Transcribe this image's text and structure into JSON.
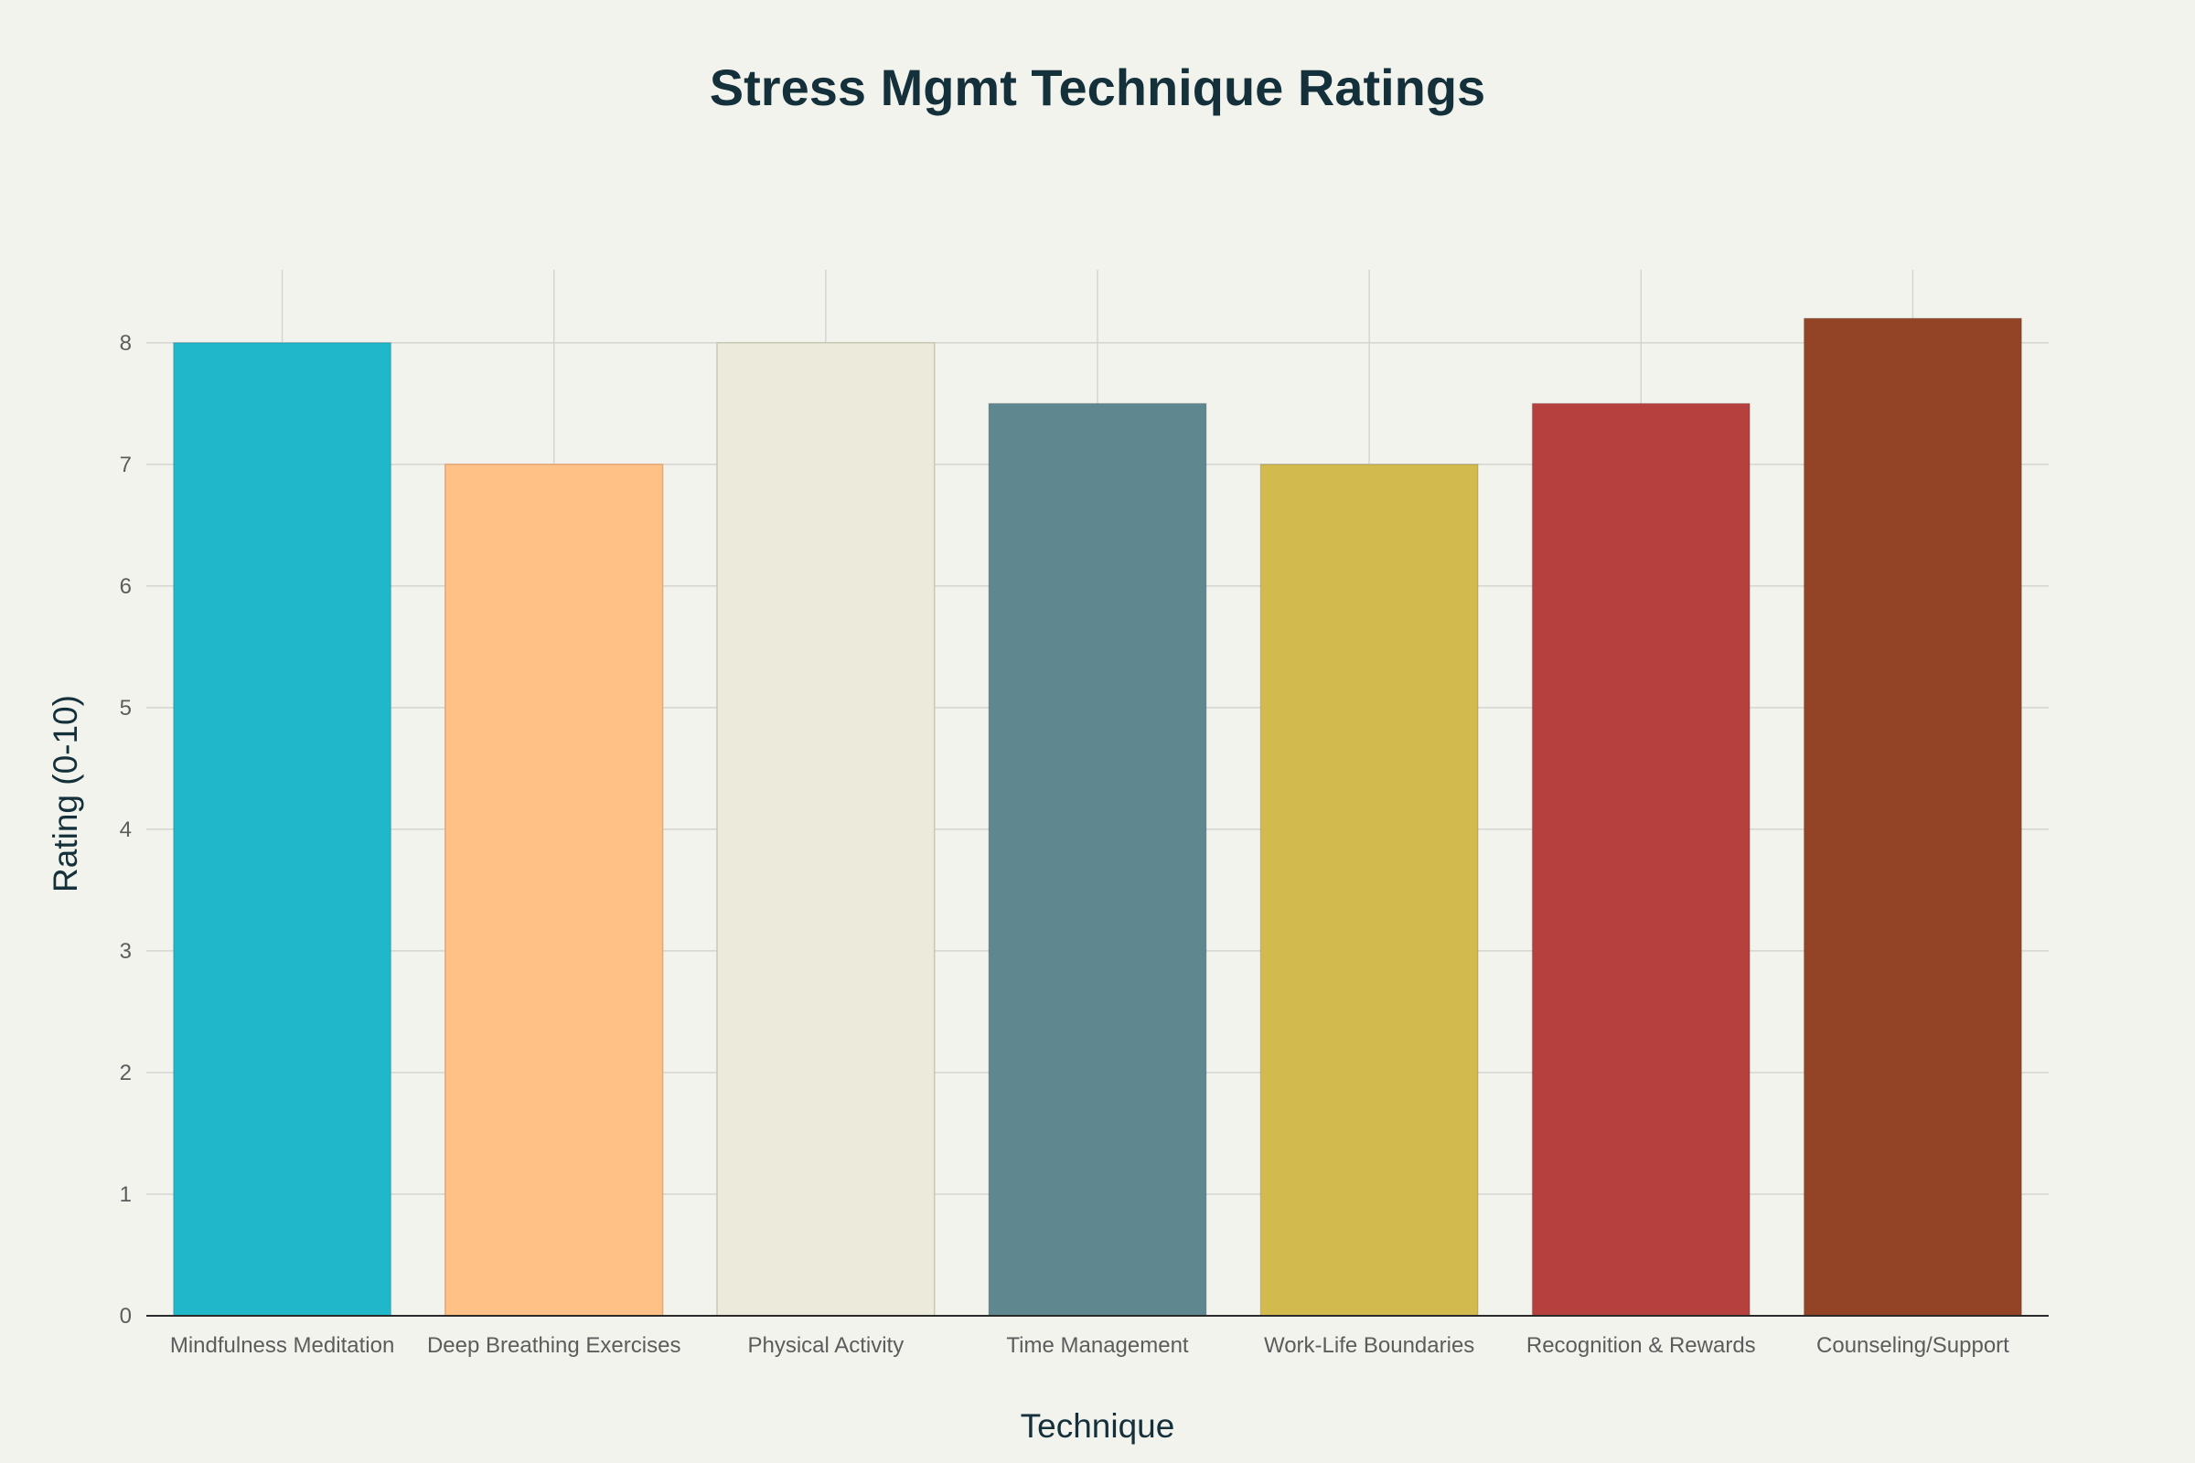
{
  "chart_data": {
    "type": "bar",
    "title": "Stress Mgmt Technique Ratings",
    "xlabel": "Technique",
    "ylabel": "Rating (0-10)",
    "ylim": [
      0,
      8.6
    ],
    "yticks": [
      0,
      1,
      2,
      3,
      4,
      5,
      6,
      7,
      8
    ],
    "grid": true,
    "categories": [
      "Mindfulness Meditation",
      "Deep Breathing Exercises",
      "Physical Activity",
      "Time Management",
      "Work-Life Boundaries",
      "Recognition & Rewards",
      "Counseling/Support"
    ],
    "values": [
      8,
      7,
      8,
      7.5,
      7,
      7.5,
      8.2
    ],
    "colors": [
      "#21b7cb",
      "#ffc186",
      "#eceadb",
      "#5e8790",
      "#d2ba4e",
      "#b5403d",
      "#934326"
    ]
  }
}
